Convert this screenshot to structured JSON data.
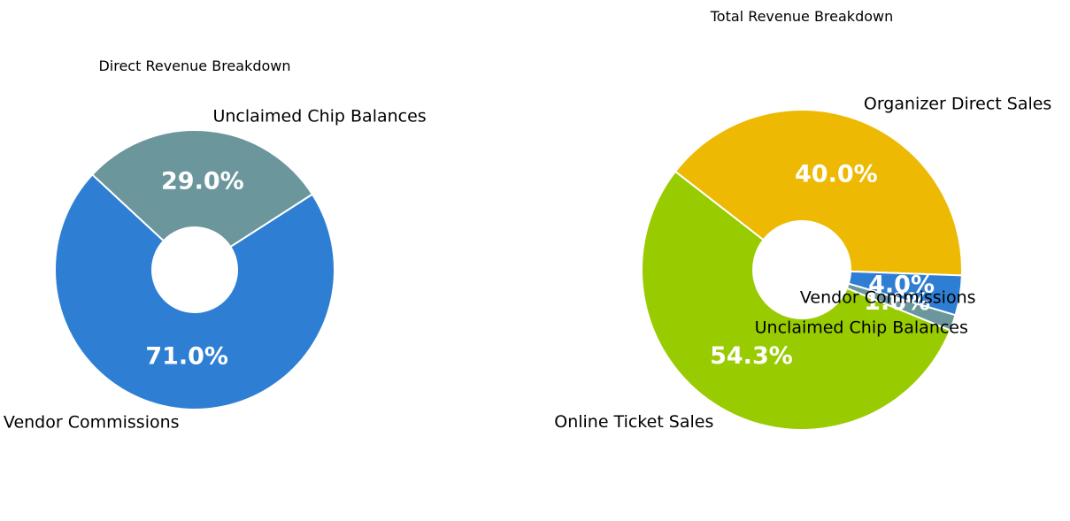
{
  "chart_data": [
    {
      "type": "pie",
      "variant": "donut",
      "title": "Direct Revenue Breakdown",
      "categories": [
        "Unclaimed Chip Balances",
        "Vendor Commissions"
      ],
      "values": [
        29.0,
        71.0
      ],
      "percent_labels": [
        "29.0%",
        "71.0%"
      ],
      "colors": [
        "#6b969c",
        "#2e7fd3"
      ],
      "legend": "none"
    },
    {
      "type": "pie",
      "variant": "donut",
      "title": "Total Revenue Breakdown",
      "categories": [
        "Organizer Direct Sales",
        "Online Ticket Sales",
        "Unclaimed Chip Balances",
        "Vendor Commissions"
      ],
      "values": [
        40.0,
        54.3,
        1.6,
        4.0
      ],
      "percent_labels": [
        "40.0%",
        "54.3%",
        "1.6%",
        "4.0%"
      ],
      "colors": [
        "#edb903",
        "#98cc00",
        "#6b969c",
        "#2e7fd3"
      ],
      "legend": "none"
    }
  ]
}
